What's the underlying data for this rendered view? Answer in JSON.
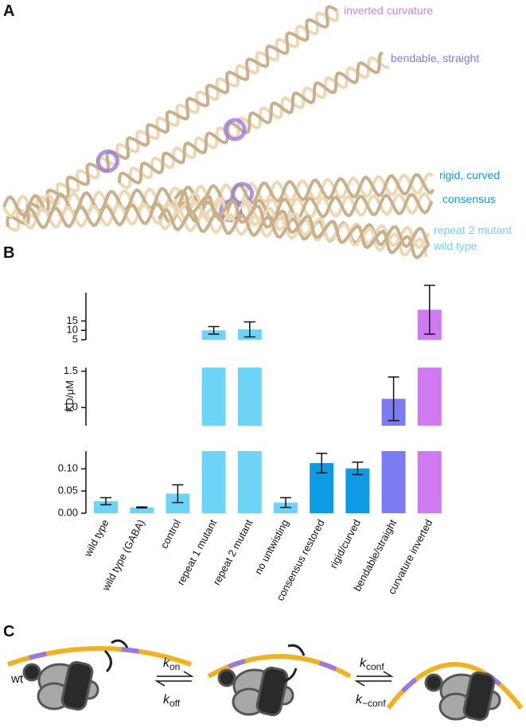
{
  "panel_labels": [
    "A",
    "B",
    "C"
  ],
  "panel_a": {
    "labels": [
      {
        "text": "inverted curvature",
        "color": "#d07af2"
      },
      {
        "text": "bendable, straight",
        "color": "#7b7bf2"
      },
      {
        "text": "rigid, curved",
        "color": "#0d9be6"
      },
      {
        "text": "consensus",
        "color": "#0d9be6"
      },
      {
        "text": "repeat 2 mutant",
        "color": "#6dd3f7"
      },
      {
        "text": "wild type",
        "color": "#6dd3f7"
      }
    ]
  },
  "chart_data": {
    "type": "bar",
    "y_label": "KD/μM",
    "categories": [
      "wild type",
      "wild type (GABA)",
      "control",
      "repeat 1 mutant",
      "repeat 2 mutant",
      "no untwisting",
      "consensus restored",
      "rigid/curved",
      "bendable/straight",
      "curvature inverted"
    ],
    "values": [
      0.027,
      0.013,
      0.044,
      10,
      10.5,
      0.024,
      0.113,
      0.101,
      1.12,
      21
    ],
    "errors": [
      0.008,
      0.001,
      0.02,
      2,
      4,
      0.011,
      0.022,
      0.014,
      0.3,
      13
    ],
    "colors": [
      "#6dd3f7",
      "#6dd3f7",
      "#6dd3f7",
      "#6dd3f7",
      "#6dd3f7",
      "#6dd3f7",
      "#0d9be6",
      "#0d9be6",
      "#7b7bf2",
      "#d07af2"
    ],
    "segments": [
      {
        "ylim": [
          0,
          0.14
        ],
        "yticks": [
          {
            "value": 0,
            "label": "0.00"
          },
          0.05,
          {
            "value": 0.1,
            "label": "0.10"
          }
        ]
      },
      {
        "ylim": [
          0.75,
          1.55
        ],
        "yticks": [
          {
            "value": 1,
            "label": "1.0"
          },
          1.5
        ]
      },
      {
        "ylim": [
          5,
          30
        ],
        "yticks": [
          5,
          10,
          15
        ]
      }
    ]
  },
  "panel_c": {
    "wt_label": "wt",
    "rates": [
      {
        "symbol": "k",
        "sub": "on"
      },
      {
        "symbol": "k",
        "sub": "off"
      },
      {
        "symbol": "k",
        "sub": "conf"
      },
      {
        "symbol": "k",
        "sub": "−conf"
      }
    ]
  }
}
